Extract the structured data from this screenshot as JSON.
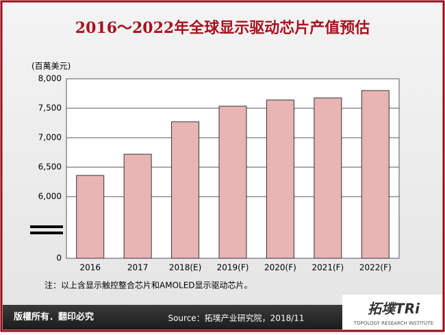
{
  "chart_data": {
    "type": "bar",
    "title": "2016～2022年全球显示驱动芯片产值预估",
    "y_label": "(百萬美元)",
    "categories": [
      "2016",
      "2017",
      "2018(E)",
      "2019(F)",
      "2020(F)",
      "2021(F)",
      "2022(F)"
    ],
    "values": [
      6360,
      6720,
      7270,
      7535,
      7640,
      7675,
      7800
    ],
    "color": "#e8b4b4",
    "ylim": [
      0,
      8000
    ],
    "yticks": [
      0,
      {
        "value": 6000,
        "label": "6,000"
      },
      {
        "value": 6500,
        "label": "6,500"
      },
      {
        "value": 7000,
        "label": "7,000"
      },
      {
        "value": 7500,
        "label": "7,500"
      },
      {
        "value": 8000,
        "label": "8,000"
      }
    ],
    "axis_break": true,
    "grid": true,
    "note": "注：以上含显示触控整合芯片和AMOLED显示驱动芯片。"
  },
  "footer": {
    "copyright": "版權所有．翻印必究",
    "source": "Source：拓墣产业研究院，2018/11",
    "logo": "拓墣TRi",
    "logo_sub": "TOPOLOGY RESEARCH INSTITUTE"
  }
}
